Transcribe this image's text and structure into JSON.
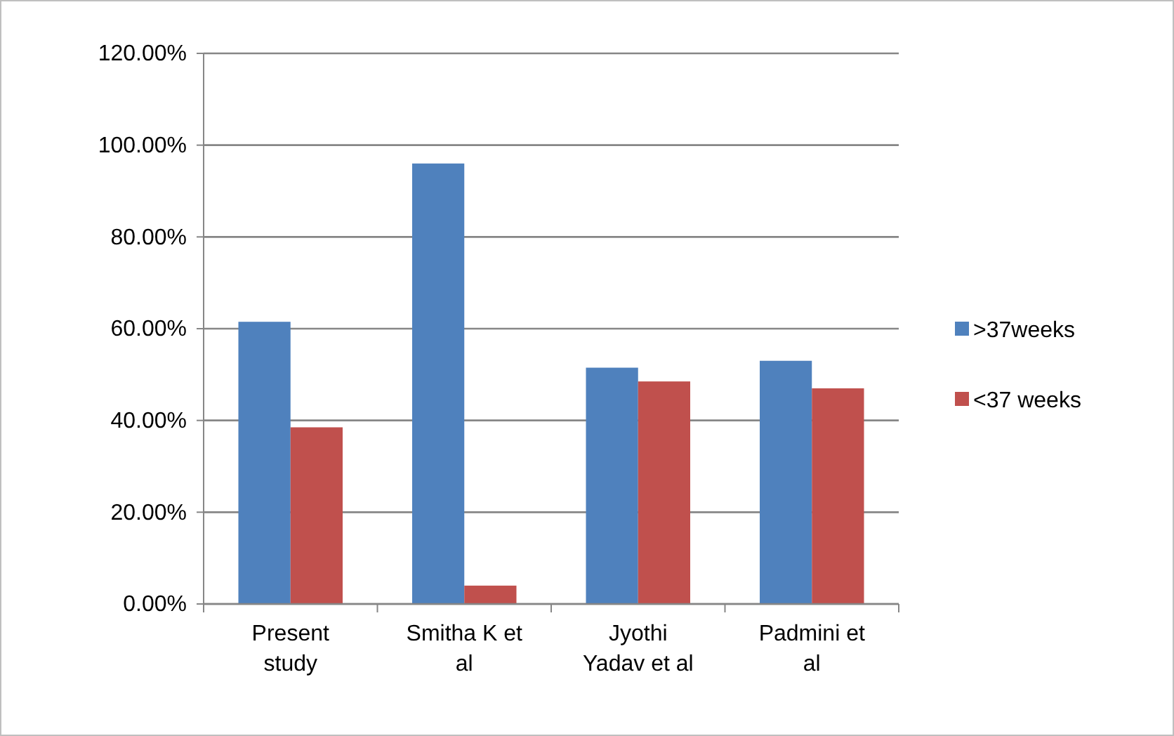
{
  "chart_data": {
    "type": "bar",
    "categories": [
      "Present study",
      "Smitha K et al",
      "Jyothi Yadav et al",
      "Padmini et al"
    ],
    "series": [
      {
        "name": ">37weeks",
        "color": "#4f81bd",
        "values": [
          61.5,
          96,
          51.5,
          53
        ]
      },
      {
        "name": "<37 weeks",
        "color": "#c0504d",
        "values": [
          38.5,
          4,
          48.5,
          47
        ]
      }
    ],
    "ylim": [
      0,
      120
    ],
    "yticks": [
      {
        "value": 0,
        "label": "0.00%"
      },
      {
        "value": 20,
        "label": "20.00%"
      },
      {
        "value": 40,
        "label": "40.00%"
      },
      {
        "value": 60,
        "label": "60.00%"
      },
      {
        "value": 80,
        "label": "80.00%"
      },
      {
        "value": 100,
        "label": "100.00%"
      },
      {
        "value": 120,
        "label": "120.00%"
      }
    ],
    "grid": "y",
    "legend": "right"
  }
}
